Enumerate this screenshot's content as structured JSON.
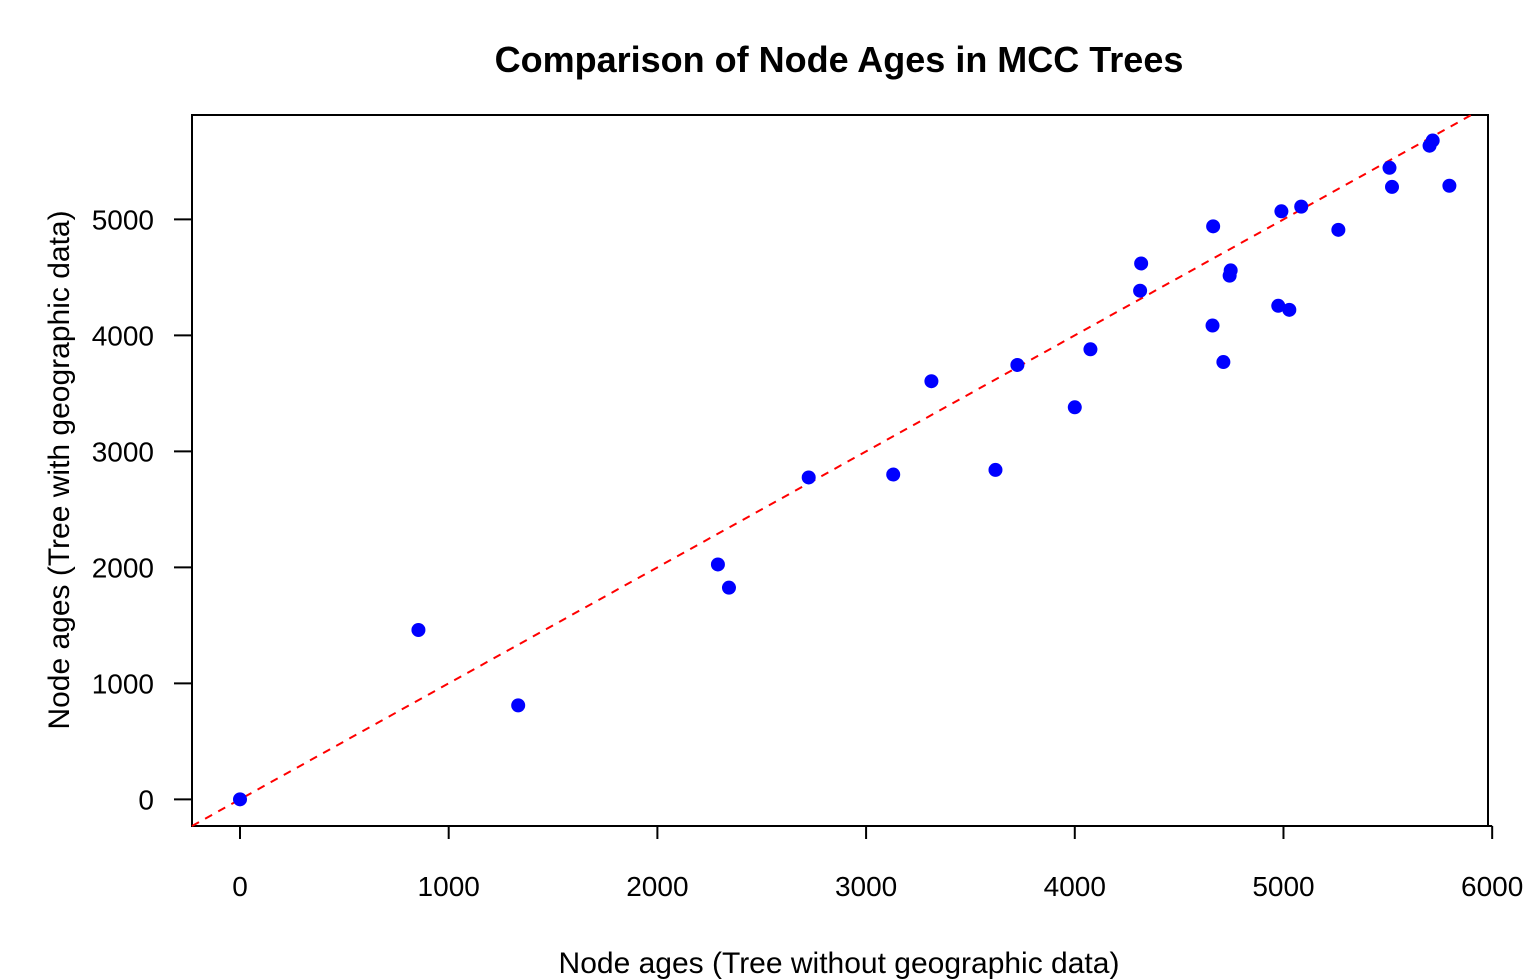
{
  "chart_data": {
    "type": "scatter",
    "title": "Comparison of Node Ages in MCC Trees",
    "xlabel": "Node ages (Tree without geographic data)",
    "ylabel": "Node ages (Tree with geographic data)",
    "xlim": [
      -230,
      5980
    ],
    "ylim": [
      -230,
      5900
    ],
    "xticks": [
      0,
      1000,
      2000,
      3000,
      4000,
      5000,
      6000
    ],
    "yticks": [
      0,
      1000,
      2000,
      3000,
      4000,
      5000
    ],
    "grid": false,
    "point_color": "#0000ff",
    "reference_line": {
      "slope": 1,
      "intercept": 0,
      "color": "#ff0000",
      "style": "dashed"
    },
    "points": [
      {
        "x": 0,
        "y": 0
      },
      {
        "x": 855,
        "y": 1460
      },
      {
        "x": 1333,
        "y": 810
      },
      {
        "x": 2290,
        "y": 2025
      },
      {
        "x": 2343,
        "y": 1825
      },
      {
        "x": 2725,
        "y": 2775
      },
      {
        "x": 3130,
        "y": 2800
      },
      {
        "x": 3313,
        "y": 3605
      },
      {
        "x": 3620,
        "y": 2840
      },
      {
        "x": 3725,
        "y": 3745
      },
      {
        "x": 4000,
        "y": 3380
      },
      {
        "x": 4075,
        "y": 3880
      },
      {
        "x": 4313,
        "y": 4385
      },
      {
        "x": 4318,
        "y": 4620
      },
      {
        "x": 4660,
        "y": 4085
      },
      {
        "x": 4663,
        "y": 4940
      },
      {
        "x": 4712,
        "y": 3770
      },
      {
        "x": 4742,
        "y": 4515
      },
      {
        "x": 4747,
        "y": 4560
      },
      {
        "x": 4975,
        "y": 4255
      },
      {
        "x": 4990,
        "y": 5070
      },
      {
        "x": 5028,
        "y": 4220
      },
      {
        "x": 5085,
        "y": 5110
      },
      {
        "x": 5263,
        "y": 4910
      },
      {
        "x": 5508,
        "y": 5445
      },
      {
        "x": 5520,
        "y": 5280
      },
      {
        "x": 5700,
        "y": 5635
      },
      {
        "x": 5715,
        "y": 5680
      },
      {
        "x": 5795,
        "y": 5290
      }
    ]
  }
}
